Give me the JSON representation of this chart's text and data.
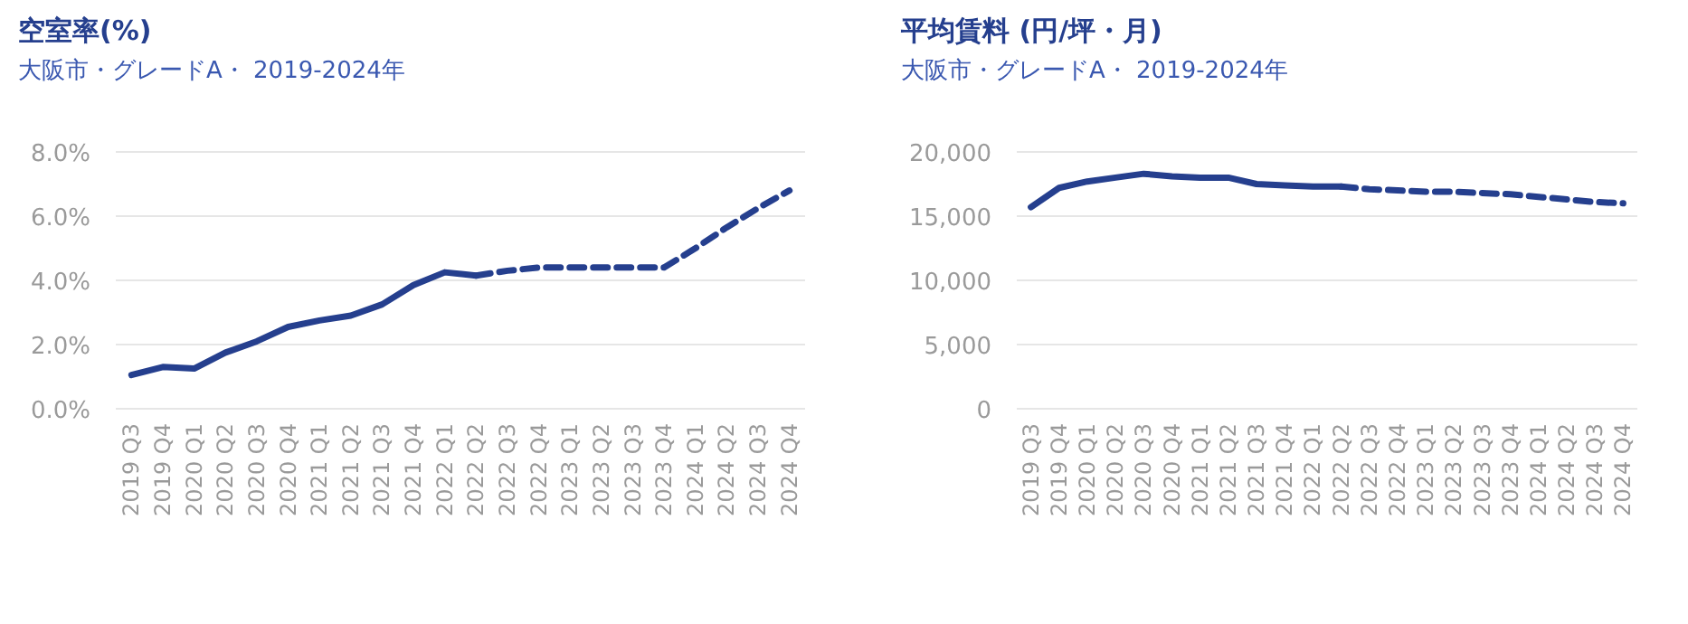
{
  "chart_data": [
    {
      "type": "line",
      "title": "空室率(%)",
      "subtitle": "大阪市・グレードA・ 2019-2024年",
      "categories": [
        "2019 Q3",
        "2019 Q4",
        "2020 Q1",
        "2020 Q2",
        "2020 Q3",
        "2020 Q4",
        "2021 Q1",
        "2021 Q2",
        "2021 Q3",
        "2021 Q4",
        "2022 Q1",
        "2022 Q2",
        "2022 Q3",
        "2022 Q4",
        "2023 Q1",
        "2023 Q2",
        "2023 Q3",
        "2023 Q4",
        "2024 Q1",
        "2024 Q2",
        "2024 Q3",
        "2024 Q4"
      ],
      "series": [
        {
          "color": "#253f8e",
          "line_style": "solid",
          "values": [
            1.05,
            1.3,
            1.25,
            1.75,
            2.1,
            2.55,
            2.75,
            2.9,
            3.25,
            3.85,
            4.25,
            4.15,
            null,
            null,
            null,
            null,
            null,
            null,
            null,
            null,
            null,
            null
          ]
        },
        {
          "color": "#253f8e",
          "line_style": "dashed",
          "values": [
            null,
            null,
            null,
            null,
            null,
            null,
            null,
            null,
            null,
            null,
            null,
            4.15,
            4.3,
            4.4,
            4.4,
            4.4,
            4.4,
            4.4,
            5.0,
            5.65,
            6.25,
            6.8
          ]
        }
      ],
      "ylim": [
        0,
        8
      ],
      "yticks": [
        {
          "value": 0,
          "label": "0.0%"
        },
        {
          "value": 2,
          "label": "2.0%"
        },
        {
          "value": 4,
          "label": "4.0%"
        },
        {
          "value": 6,
          "label": "6.0%"
        },
        {
          "value": 8,
          "label": "8.0%"
        }
      ],
      "grid": "y",
      "marker": "none"
    },
    {
      "type": "line",
      "title": "平均賃料 (円/坪・月)",
      "subtitle": "大阪市・グレードA・ 2019-2024年",
      "categories": [
        "2019 Q3",
        "2019 Q4",
        "2020 Q1",
        "2020 Q2",
        "2020 Q3",
        "2020 Q4",
        "2021 Q1",
        "2021 Q2",
        "2021 Q3",
        "2021 Q4",
        "2022 Q1",
        "2022 Q2",
        "2022 Q3",
        "2022 Q4",
        "2023 Q1",
        "2023 Q2",
        "2023 Q3",
        "2023 Q4",
        "2024 Q1",
        "2024 Q2",
        "2024 Q3",
        "2024 Q4"
      ],
      "series": [
        {
          "color": "#253f8e",
          "line_style": "solid",
          "values": [
            15700,
            17200,
            17700,
            18000,
            18300,
            18100,
            18000,
            18000,
            17500,
            17400,
            17300,
            17300,
            null,
            null,
            null,
            null,
            null,
            null,
            null,
            null,
            null,
            null
          ]
        },
        {
          "color": "#253f8e",
          "line_style": "dashed",
          "values": [
            null,
            null,
            null,
            null,
            null,
            null,
            null,
            null,
            null,
            null,
            null,
            17300,
            17100,
            17000,
            16900,
            16900,
            16800,
            16700,
            16500,
            16300,
            16100,
            16000
          ]
        }
      ],
      "ylim": [
        0,
        20000
      ],
      "yticks": [
        {
          "value": 0,
          "label": "0"
        },
        {
          "value": 5000,
          "label": "5,000"
        },
        {
          "value": 10000,
          "label": "10,000"
        },
        {
          "value": 15000,
          "label": "15,000"
        },
        {
          "value": 20000,
          "label": "20,000"
        }
      ],
      "grid": "y",
      "marker": "none"
    }
  ]
}
